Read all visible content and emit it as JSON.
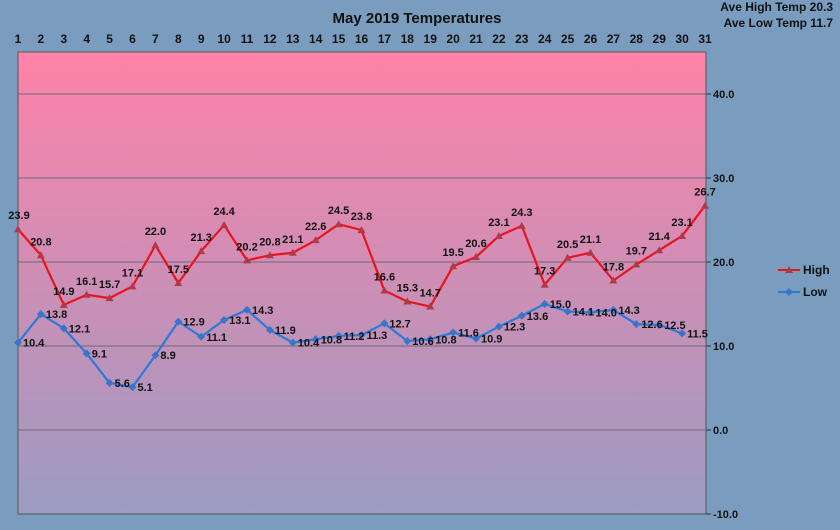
{
  "colors": {
    "background": "#7a9dbf",
    "plot_top": "#ff82a9",
    "plot_bottom": "#9b9bc2",
    "high": "#e8141e",
    "high_marker": "#b03a4a",
    "low": "#2a7bd8",
    "low_marker": "#3a73c8",
    "grid": "#6a6a78"
  },
  "stats": {
    "ave_high": "Ave High Temp 20.3",
    "ave_low": "Ave Low Temp 11.7"
  },
  "chart_data": {
    "type": "line",
    "title": "May 2019 Temperatures",
    "xlabel": "",
    "ylabel": "",
    "x": [
      1,
      2,
      3,
      4,
      5,
      6,
      7,
      8,
      9,
      10,
      11,
      12,
      13,
      14,
      15,
      16,
      17,
      18,
      19,
      20,
      21,
      22,
      23,
      24,
      25,
      26,
      27,
      28,
      29,
      30,
      31
    ],
    "ylim": [
      -10,
      45
    ],
    "y_ticks": [
      "-10.0",
      "0.0",
      "10.0",
      "20.0",
      "30.0",
      "40.0"
    ],
    "y_tick_values": [
      -10,
      0,
      10,
      20,
      30,
      40
    ],
    "x_axis_position": "top",
    "y_axis_position": "right",
    "grid": true,
    "legend_position": "right",
    "series": [
      {
        "name": "High",
        "values": [
          23.9,
          20.8,
          14.9,
          16.1,
          15.7,
          17.1,
          22.0,
          17.5,
          21.3,
          24.4,
          20.2,
          20.8,
          21.1,
          22.6,
          24.5,
          23.8,
          16.6,
          15.3,
          14.7,
          19.5,
          20.6,
          23.1,
          24.3,
          17.3,
          20.5,
          21.1,
          17.8,
          19.7,
          21.4,
          23.1,
          26.7
        ],
        "labels": [
          "23.9",
          "20.8",
          "14.9",
          "16.1",
          "15.7",
          "17.1",
          "22.0",
          "17.5",
          "21.3",
          "24.4",
          "20.2",
          "20.8",
          "21.1",
          "22.6",
          "24.5",
          "23.8",
          "16.6",
          "15.3",
          "14.7",
          "19.5",
          "20.6",
          "23.1",
          "24.3",
          "17.3",
          "20.5",
          "21.1",
          "17.8",
          "19.7",
          "21.4",
          "23.1",
          "26.7"
        ]
      },
      {
        "name": "Low",
        "values": [
          10.4,
          13.8,
          12.1,
          9.1,
          5.6,
          5.1,
          8.9,
          12.9,
          11.1,
          13.1,
          14.3,
          11.9,
          10.4,
          10.8,
          11.2,
          11.3,
          12.7,
          10.6,
          10.8,
          11.6,
          10.9,
          12.3,
          13.6,
          15.0,
          14.1,
          14.0,
          14.3,
          12.6,
          12.5,
          11.5,
          null
        ],
        "labels": [
          "10.4",
          "13.8",
          "12.1",
          "9.1",
          "5.6",
          "5.1",
          "8.9",
          "12.9",
          "11.1",
          "13.1",
          "14.3",
          "11.9",
          "10.4",
          "10.8",
          "11.2",
          "11.3",
          "12.7",
          "10.6",
          "10.8",
          "11.6",
          "10.9",
          "12.3",
          "13.6",
          "15.0",
          "14.1",
          "14.0",
          "14.3",
          "12.6",
          "12.5",
          "11.5",
          ""
        ]
      }
    ]
  }
}
